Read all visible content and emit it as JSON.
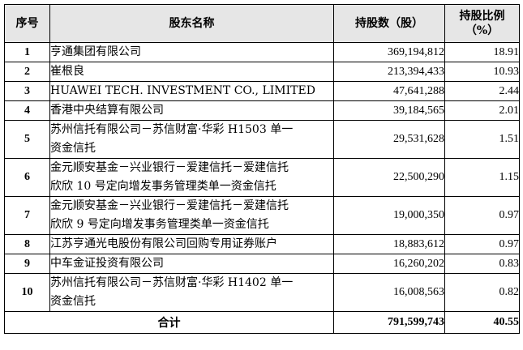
{
  "headers": {
    "index": "序号",
    "name": "股东名称",
    "shares": "持股数（股）",
    "ratio_line1": "持股比例",
    "ratio_line2": "（%）"
  },
  "rows": [
    {
      "index": "1",
      "name": [
        "亨通集团有限公司"
      ],
      "shares": "369,194,812",
      "ratio": "18.91"
    },
    {
      "index": "2",
      "name": [
        "崔根良"
      ],
      "shares": "213,394,433",
      "ratio": "10.93"
    },
    {
      "index": "3",
      "name": [
        "HUAWEI TECH. INVESTMENT CO., LIMITED"
      ],
      "shares": "47,641,288",
      "ratio": "2.44"
    },
    {
      "index": "4",
      "name": [
        "香港中央结算有限公司"
      ],
      "shares": "39,184,565",
      "ratio": "2.01"
    },
    {
      "index": "5",
      "name": [
        "苏州信托有限公司－苏信财富·华彩 H1503 单一",
        "资金信托"
      ],
      "shares": "29,531,628",
      "ratio": "1.51"
    },
    {
      "index": "6",
      "name": [
        "金元顺安基金－兴业银行－爱建信托－爱建信托",
        "欣欣 10 号定向增发事务管理类单一资金信托"
      ],
      "shares": "22,500,290",
      "ratio": "1.15"
    },
    {
      "index": "7",
      "name": [
        "金元顺安基金－兴业银行－爱建信托－爱建信托",
        "欣欣 9 号定向增发事务管理类单一资金信托"
      ],
      "shares": "19,000,350",
      "ratio": "0.97"
    },
    {
      "index": "8",
      "name": [
        "江苏亨通光电股份有限公司回购专用证券账户"
      ],
      "shares": "18,883,612",
      "ratio": "0.97"
    },
    {
      "index": "9",
      "name": [
        "中车金证投资有限公司"
      ],
      "shares": "16,260,202",
      "ratio": "0.83"
    },
    {
      "index": "10",
      "name": [
        "苏州信托有限公司－苏信财富·华彩 H1402 单一",
        "资金信托"
      ],
      "shares": "16,008,563",
      "ratio": "0.82"
    }
  ],
  "total": {
    "label": "合计",
    "shares": "791,599,743",
    "ratio": "40.55"
  }
}
